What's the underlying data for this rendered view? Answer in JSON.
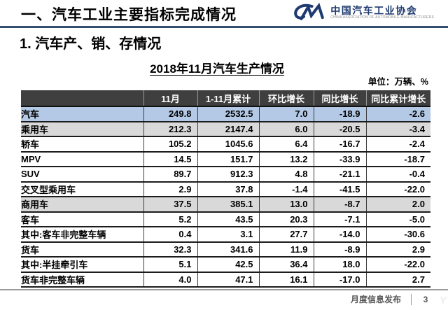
{
  "header": {
    "title": "一、汽车工业主要指标完成情况",
    "logo": {
      "org_cn": "中国汽车工业协会",
      "org_en": "CHINA ASSOCIATION OF AUTOMOBILE MANUFACTURERS"
    }
  },
  "section_title": "1. 汽车产、销、存情况",
  "table_title": "2018年11月汽车生产情况",
  "unit_label": "单位：万辆、%",
  "table": {
    "columns": [
      "",
      "11月",
      "1-11月累计",
      "环比增长",
      "同比增长",
      "同比累计增长"
    ],
    "rows": [
      {
        "label": "汽车",
        "indent": 0,
        "style": "blue",
        "values": [
          "249.8",
          "2532.5",
          "7.0",
          "-18.9",
          "-2.6"
        ]
      },
      {
        "label": "乘用车",
        "indent": 1,
        "style": "gray",
        "values": [
          "212.3",
          "2147.4",
          "6.0",
          "-20.5",
          "-3.4"
        ]
      },
      {
        "label": "轿车",
        "indent": 2,
        "style": "white",
        "values": [
          "105.2",
          "1045.6",
          "6.4",
          "-16.7",
          "-2.4"
        ]
      },
      {
        "label": "MPV",
        "indent": 2,
        "style": "white",
        "values": [
          "14.5",
          "151.7",
          "13.2",
          "-33.9",
          "-18.7"
        ]
      },
      {
        "label": "SUV",
        "indent": 2,
        "style": "white",
        "values": [
          "89.7",
          "912.3",
          "4.8",
          "-21.1",
          "-0.4"
        ]
      },
      {
        "label": "交叉型乘用车",
        "indent": 2,
        "style": "white",
        "values": [
          "2.9",
          "37.8",
          "-1.4",
          "-41.5",
          "-22.0"
        ]
      },
      {
        "label": "商用车",
        "indent": 1,
        "style": "gray",
        "values": [
          "37.5",
          "385.1",
          "13.0",
          "-8.7",
          "2.0"
        ]
      },
      {
        "label": "客车",
        "indent": 2,
        "style": "white",
        "values": [
          "5.2",
          "43.5",
          "20.3",
          "-7.1",
          "-5.0"
        ]
      },
      {
        "label": "其中:客车非完整车辆",
        "indent": 3,
        "style": "white",
        "values": [
          "0.4",
          "3.1",
          "27.7",
          "-14.0",
          "-30.6"
        ]
      },
      {
        "label": "货车",
        "indent": 2,
        "style": "white",
        "values": [
          "32.3",
          "341.6",
          "11.9",
          "-8.9",
          "2.9"
        ]
      },
      {
        "label": "其中:半挂牵引车",
        "indent": 3,
        "style": "white",
        "values": [
          "5.1",
          "42.5",
          "36.4",
          "18.0",
          "-22.0"
        ]
      },
      {
        "label": "货车非完整车辆",
        "indent": 3,
        "style": "white",
        "values": [
          "4.0",
          "47.1",
          "16.1",
          "-17.0",
          "2.7"
        ]
      }
    ]
  },
  "footer": {
    "label": "月度信息发布",
    "page": "3",
    "watermark": "Y"
  },
  "colors": {
    "accent_navy": "#1e3a70",
    "header_rule": "#33506e",
    "table_header_bg": "#3f3f3f",
    "row_highlight_blue": "#b3c9e6",
    "row_highlight_gray": "#d9d9d9"
  }
}
